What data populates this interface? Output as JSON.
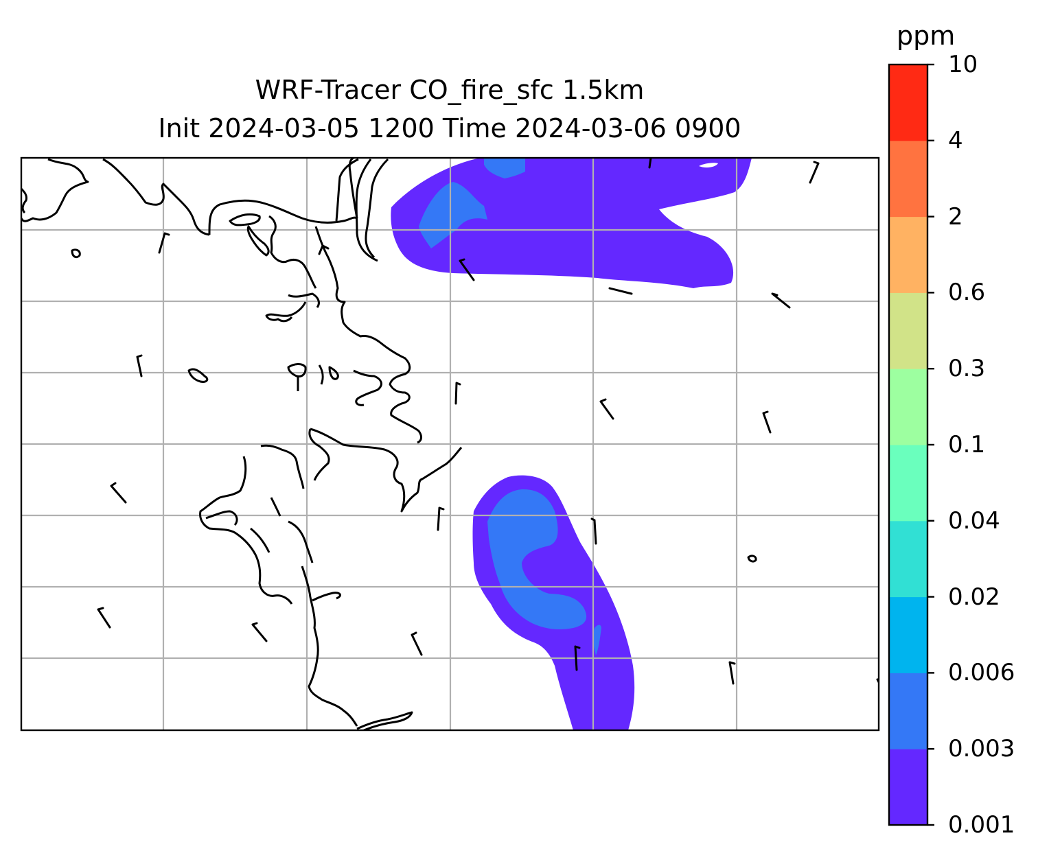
{
  "title": {
    "line1": "WRF-Tracer CO_fire_sfc 1.5km",
    "line2": "Init 2024-03-05 1200 Time 2024-03-06 0900"
  },
  "colorbar": {
    "unit": "ppm",
    "levels": [
      "0.001",
      "0.003",
      "0.006",
      "0.02",
      "0.04",
      "0.1",
      "0.3",
      "0.6",
      "2",
      "4",
      "10"
    ],
    "colors": [
      "#6428ff",
      "#3478f6",
      "#00b4ee",
      "#31e0d4",
      "#6affbd",
      "#9dffa0",
      "#d1e388",
      "#ffb262",
      "#ff7340",
      "#ff2a14"
    ]
  },
  "map": {
    "plume_colors": {
      "low": "#6428ff",
      "mid": "#3478f6"
    },
    "grid_color": "#b0b0b0",
    "coastline_color": "#000000"
  }
}
